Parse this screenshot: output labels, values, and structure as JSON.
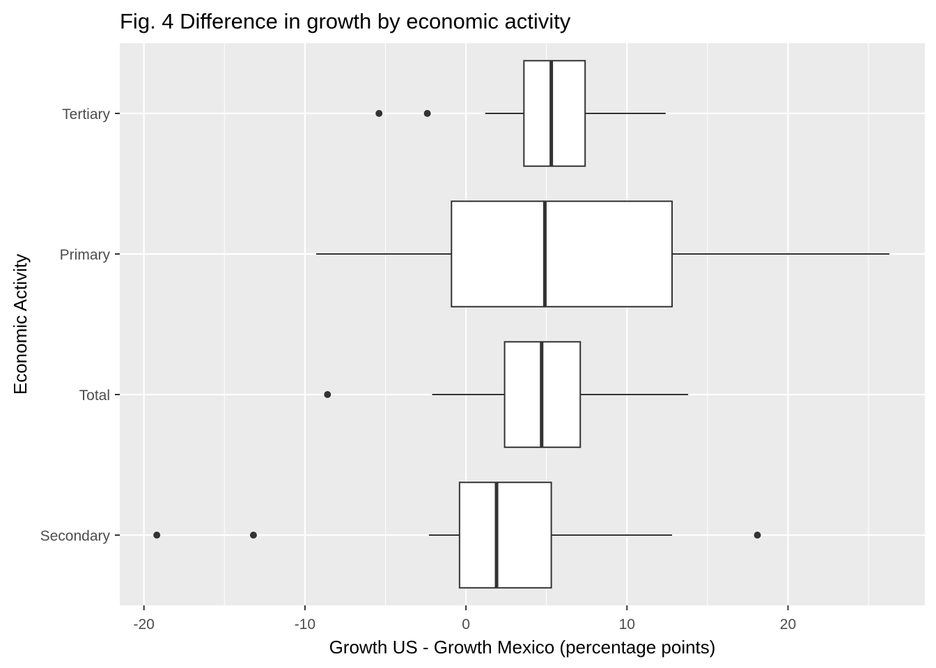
{
  "chart_data": {
    "type": "boxplot",
    "title": "Fig. 4 Difference in growth by economic activity",
    "xlabel": "Growth US - Growth Mexico (percentage points)",
    "ylabel": "Economic Activity",
    "xlim": [
      -21.5,
      28.5
    ],
    "x_ticks": [
      -20,
      -10,
      0,
      10,
      20
    ],
    "x_tick_labels": [
      "-20",
      "-10",
      "0",
      "10",
      "20"
    ],
    "grid": true,
    "categories": [
      "Tertiary",
      "Primary",
      "Total",
      "Secondary"
    ],
    "series": [
      {
        "category": "Tertiary",
        "whisker_low": 1.2,
        "q1": 3.6,
        "median": 5.3,
        "q3": 7.4,
        "whisker_high": 12.4,
        "outliers": [
          -5.4,
          -2.4
        ]
      },
      {
        "category": "Primary",
        "whisker_low": -9.3,
        "q1": -0.9,
        "median": 4.9,
        "q3": 12.8,
        "whisker_high": 26.3,
        "outliers": []
      },
      {
        "category": "Total",
        "whisker_low": -2.1,
        "q1": 2.4,
        "median": 4.7,
        "q3": 7.1,
        "whisker_high": 13.8,
        "outliers": [
          -8.6
        ]
      },
      {
        "category": "Secondary",
        "whisker_low": -2.3,
        "q1": -0.4,
        "median": 1.9,
        "q3": 5.3,
        "whisker_high": 12.8,
        "outliers": [
          -19.2,
          -13.2,
          18.1
        ]
      }
    ],
    "colors": {
      "panel": "#ebebeb",
      "grid": "#ffffff",
      "box_fill": "#ffffff",
      "box_stroke": "#333333",
      "tick_label": "#4d4d4d"
    }
  }
}
